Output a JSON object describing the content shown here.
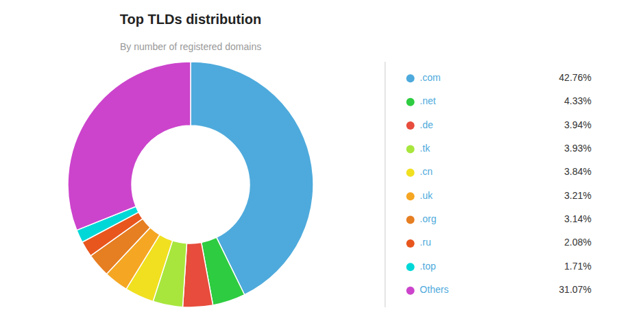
{
  "chart_data": {
    "type": "pie",
    "title": "Top TLDs distribution",
    "subtitle": "By number of registered domains",
    "categories": [
      ".com",
      ".net",
      ".de",
      ".tk",
      ".cn",
      ".uk",
      ".org",
      ".ru",
      ".top",
      "Others"
    ],
    "values": [
      42.76,
      4.33,
      3.94,
      3.93,
      3.84,
      3.21,
      3.14,
      2.08,
      1.71,
      31.07
    ],
    "value_labels": [
      "42.76%",
      "4.33%",
      "3.94%",
      "3.93%",
      "3.84%",
      "3.21%",
      "3.14%",
      "2.08%",
      "1.71%",
      "31.07%"
    ],
    "colors": [
      "#4eaadc",
      "#2ecc40",
      "#e74c3c",
      "#a8e63d",
      "#f0e020",
      "#f5a623",
      "#e67e22",
      "#e8561e",
      "#00d8d8",
      "#cc44cc"
    ],
    "legend": "right"
  }
}
